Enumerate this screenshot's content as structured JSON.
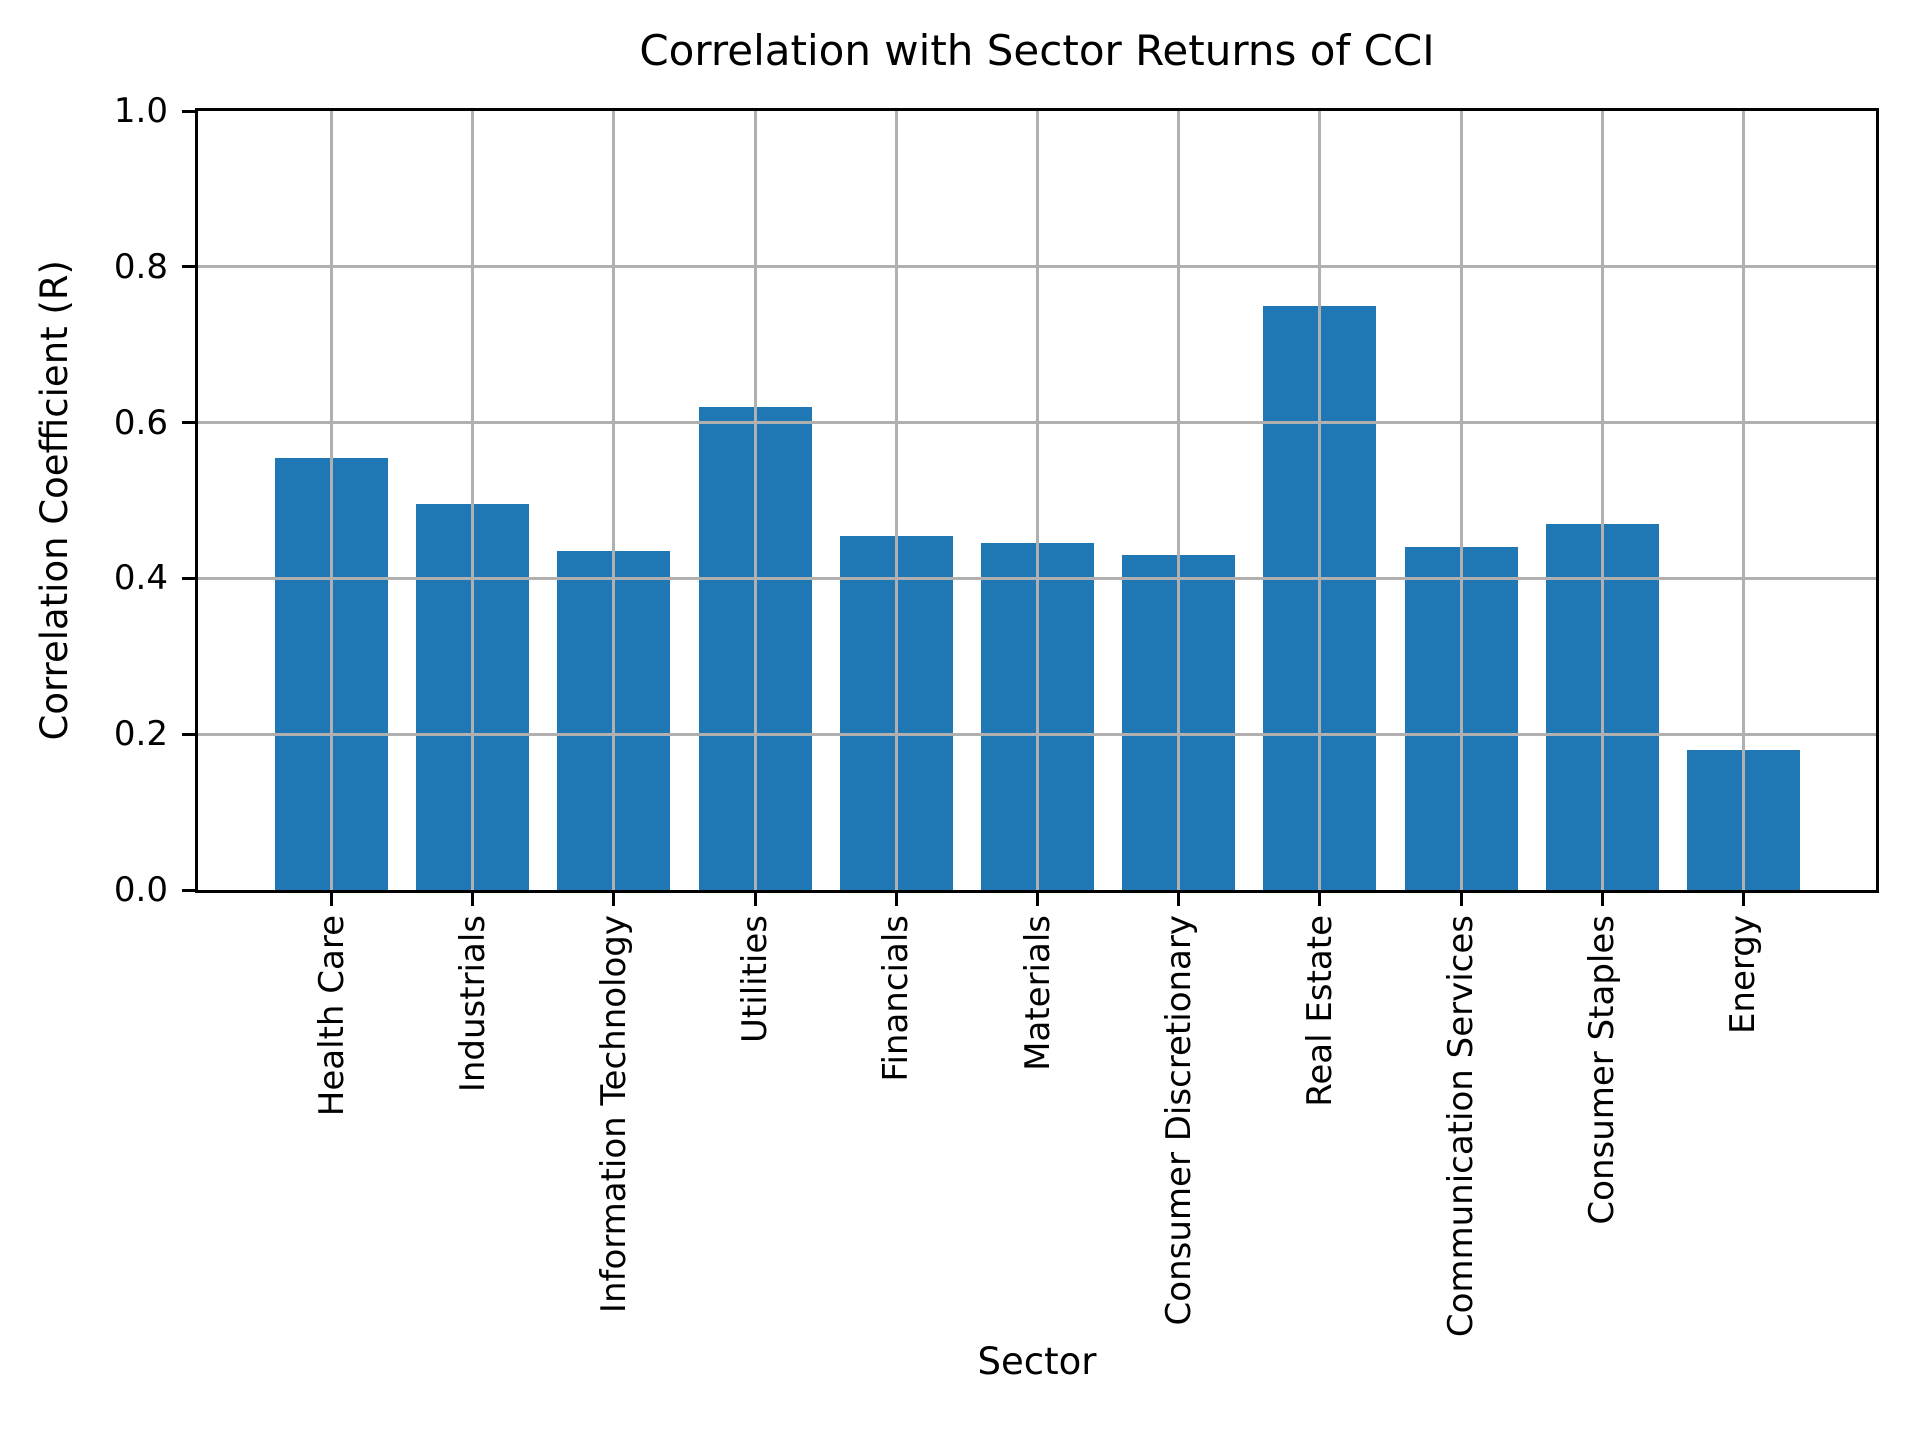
{
  "chart_data": {
    "type": "bar",
    "title": "Correlation with Sector Returns of CCI",
    "xlabel": "Sector",
    "ylabel": "Correlation Coefficient (R)",
    "categories": [
      "Health Care",
      "Industrials",
      "Information Technology",
      "Utilities",
      "Financials",
      "Materials",
      "Consumer Discretionary",
      "Real Estate",
      "Communication Services",
      "Consumer Staples",
      "Energy"
    ],
    "values": [
      0.555,
      0.495,
      0.435,
      0.62,
      0.455,
      0.445,
      0.43,
      0.75,
      0.44,
      0.47,
      0.18
    ],
    "ylim": [
      0.0,
      1.0
    ],
    "ytick_labels": [
      "0.0",
      "0.2",
      "0.4",
      "0.6",
      "0.8",
      "1.0"
    ],
    "ytick_values": [
      0.0,
      0.2,
      0.4,
      0.6,
      0.8,
      1.0
    ],
    "grid": true,
    "legend_position": "none",
    "bar_color": "#1f77b4",
    "grid_color": "#b0b0b0",
    "spine_color": "#000000"
  }
}
